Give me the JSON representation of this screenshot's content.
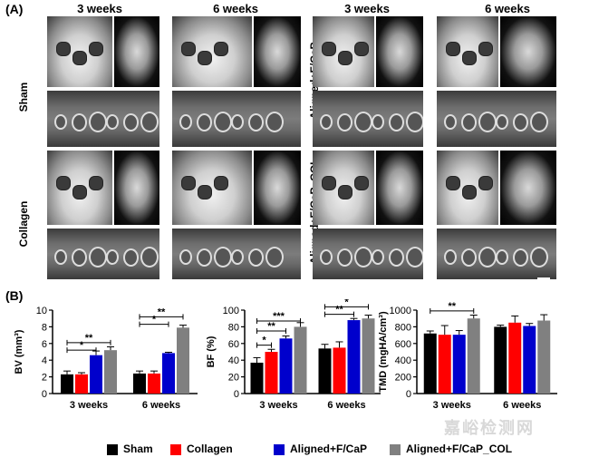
{
  "panel_a_label": "(A)",
  "panel_b_label": "(B)",
  "top_weeks": [
    "3 weeks",
    "6 weeks",
    "3 weeks",
    "6 weeks"
  ],
  "groups": {
    "sham": "Sham",
    "collagen": "Collagen",
    "aligned": "Aligned+F/CaP",
    "aligned_col": "Aligned+F/CaP_COL"
  },
  "legend": [
    {
      "label": "Sham",
      "color": "#000000"
    },
    {
      "label": "Collagen",
      "color": "#ff0000"
    },
    {
      "label": "Aligned+F/CaP",
      "color": "#0000cc"
    },
    {
      "label": "Aligned+F/CaP_COL",
      "color": "#808080"
    }
  ],
  "watermark": "嘉峪检测网",
  "chart_data": [
    {
      "type": "bar",
      "ylabel": "BV (mm³)",
      "ylim": [
        0,
        10
      ],
      "yticks": [
        "0",
        "2",
        "4",
        "6",
        "8",
        "10"
      ],
      "categories": [
        "3 weeks",
        "6 weeks"
      ],
      "series": [
        {
          "name": "Sham",
          "values": [
            2.3,
            2.4
          ],
          "errors": [
            0.4,
            0.3
          ]
        },
        {
          "name": "Collagen",
          "values": [
            2.3,
            2.4
          ],
          "errors": [
            0.2,
            0.3
          ]
        },
        {
          "name": "Aligned+F/CaP",
          "values": [
            4.6,
            4.85
          ],
          "errors": [
            0.5,
            0.1
          ]
        },
        {
          "name": "Aligned+F/CaP_COL",
          "values": [
            5.2,
            7.9
          ],
          "errors": [
            0.4,
            0.3
          ]
        }
      ],
      "annotations": [
        {
          "text": "**",
          "group": 0,
          "from": 0,
          "to": 3,
          "level": 6.1
        },
        {
          "text": "*",
          "group": 0,
          "from": 0,
          "to": 2,
          "level": 5.2
        },
        {
          "text": "**",
          "group": 1,
          "from": 0,
          "to": 3,
          "level": 9.2
        },
        {
          "text": "*",
          "group": 1,
          "from": 0,
          "to": 2,
          "level": 8.3
        }
      ],
      "legend_placement": "bottom"
    },
    {
      "type": "bar",
      "ylabel": "BF (%)",
      "ylim": [
        0,
        100
      ],
      "yticks": [
        "0",
        "20",
        "40",
        "60",
        "80",
        "100"
      ],
      "categories": [
        "3 weeks",
        "6 weeks"
      ],
      "series": [
        {
          "name": "Sham",
          "values": [
            37,
            54
          ],
          "errors": [
            6,
            5
          ]
        },
        {
          "name": "Collagen",
          "values": [
            50,
            55
          ],
          "errors": [
            3,
            7
          ]
        },
        {
          "name": "Aligned+F/CaP",
          "values": [
            66,
            88
          ],
          "errors": [
            3,
            2
          ]
        },
        {
          "name": "Aligned+F/CaP_COL",
          "values": [
            80,
            90
          ],
          "errors": [
            5,
            4
          ]
        }
      ],
      "annotations": [
        {
          "text": "*",
          "group": 0,
          "from": 0,
          "to": 1,
          "level": 58
        },
        {
          "text": "**",
          "group": 0,
          "from": 0,
          "to": 2,
          "level": 75
        },
        {
          "text": "***",
          "group": 0,
          "from": 0,
          "to": 3,
          "level": 87
        },
        {
          "text": "**",
          "group": 1,
          "from": 0,
          "to": 2,
          "level": 95
        },
        {
          "text": "*",
          "group": 1,
          "from": 0,
          "to": 3,
          "level": 104
        }
      ],
      "legend_placement": "bottom"
    },
    {
      "type": "bar",
      "ylabel": "TMD (mgHA/cm³)",
      "ylim": [
        0,
        1000
      ],
      "yticks": [
        "0",
        "200",
        "400",
        "600",
        "800",
        "1000"
      ],
      "categories": [
        "3 weeks",
        "6 weeks"
      ],
      "series": [
        {
          "name": "Sham",
          "values": [
            720,
            800
          ],
          "errors": [
            30,
            20
          ]
        },
        {
          "name": "Collagen",
          "values": [
            705,
            850
          ],
          "errors": [
            110,
            80
          ]
        },
        {
          "name": "Aligned+F/CaP",
          "values": [
            705,
            810
          ],
          "errors": [
            50,
            30
          ]
        },
        {
          "name": "Aligned+F/CaP_COL",
          "values": [
            900,
            875
          ],
          "errors": [
            40,
            70
          ]
        }
      ],
      "annotations": [
        {
          "text": "**",
          "group": 0,
          "from": 0,
          "to": 3,
          "level": 990
        }
      ],
      "legend_placement": "bottom"
    }
  ]
}
